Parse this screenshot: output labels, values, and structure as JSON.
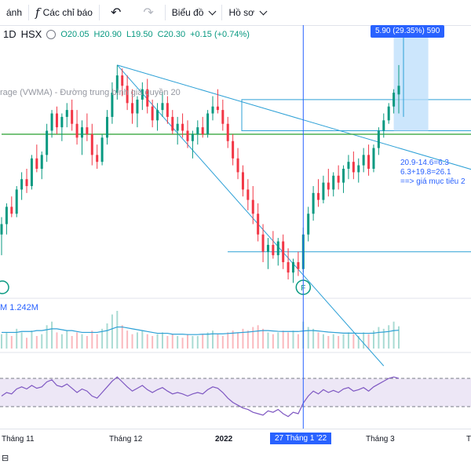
{
  "toolbar": {
    "partial_label": "ánh",
    "indicators_label": "Các chỉ báo",
    "fx_symbol": "f",
    "chart_label": "Biểu đồ",
    "profile_label": "Hồ sơ"
  },
  "legend": {
    "interval": "1D",
    "exchange": "HSX",
    "open": "O20.05",
    "high": "H20.90",
    "low": "L19.50",
    "close": "C20.30",
    "change": "+0.15 (+0.74%)"
  },
  "vwma_label": "rage (VWMA) - Đường trung bình giá quyền 20",
  "volume_label": "M  1.242M",
  "measure_label": "5.90 (29.35%) 590",
  "annotation": {
    "line1": "20.9-14.6=6.3",
    "line2": "6.3+19.8=26.1",
    "line3": "==> giá mục tiêu 2"
  },
  "event_marker": "F",
  "xaxis": {
    "labels": [
      "Tháng 11",
      "Tháng 12",
      "2022",
      "Tháng 3",
      "T"
    ],
    "cursor_date": "27 Tháng 1 '22"
  },
  "colors": {
    "up": "#089981",
    "down": "#f23645",
    "trend": "#2ca0d6",
    "support": "#4caf50",
    "rsi_band": "#ede7f6",
    "rsi_line": "#7e57c2",
    "measure_fill": "#bbdefb",
    "cursor": "#2962ff"
  },
  "chart_data": {
    "type": "candlestick",
    "candles": [
      [
        16.0,
        16.5,
        15.4,
        16.3
      ],
      [
        16.3,
        16.9,
        16.0,
        16.8
      ],
      [
        16.8,
        17.1,
        16.5,
        16.6
      ],
      [
        16.6,
        17.4,
        16.5,
        17.3
      ],
      [
        17.3,
        17.8,
        17.0,
        17.6
      ],
      [
        17.6,
        17.9,
        17.2,
        17.4
      ],
      [
        17.4,
        18.3,
        17.3,
        18.2
      ],
      [
        18.2,
        18.6,
        17.8,
        17.9
      ],
      [
        17.9,
        18.4,
        17.6,
        18.3
      ],
      [
        18.3,
        19.2,
        18.1,
        19.0
      ],
      [
        19.0,
        19.6,
        18.8,
        19.5
      ],
      [
        19.5,
        19.7,
        18.9,
        19.1
      ],
      [
        19.1,
        19.5,
        18.7,
        19.4
      ],
      [
        19.4,
        19.8,
        19.1,
        19.6
      ],
      [
        19.6,
        19.9,
        19.0,
        19.2
      ],
      [
        19.2,
        19.6,
        18.6,
        18.8
      ],
      [
        18.8,
        19.3,
        18.3,
        19.1
      ],
      [
        19.1,
        19.5,
        18.7,
        18.9
      ],
      [
        18.9,
        19.2,
        18.0,
        18.3
      ],
      [
        18.3,
        18.6,
        17.9,
        18.1
      ],
      [
        18.1,
        18.9,
        18.0,
        18.8
      ],
      [
        18.8,
        19.6,
        18.6,
        19.4
      ],
      [
        19.4,
        20.4,
        19.2,
        20.1
      ],
      [
        20.1,
        20.9,
        19.9,
        20.6
      ],
      [
        20.6,
        20.8,
        20.0,
        20.3
      ],
      [
        20.3,
        20.6,
        19.6,
        19.8
      ],
      [
        19.8,
        20.2,
        19.2,
        19.5
      ],
      [
        19.5,
        20.0,
        19.1,
        19.9
      ],
      [
        19.9,
        20.4,
        19.6,
        20.2
      ],
      [
        20.2,
        20.5,
        19.5,
        19.7
      ],
      [
        19.7,
        19.9,
        19.1,
        19.3
      ],
      [
        19.3,
        19.8,
        19.0,
        19.6
      ],
      [
        19.6,
        20.1,
        19.4,
        19.8
      ],
      [
        19.8,
        20.0,
        19.2,
        19.4
      ],
      [
        19.4,
        19.6,
        18.9,
        19.0
      ],
      [
        19.0,
        19.4,
        18.6,
        19.2
      ],
      [
        19.2,
        19.5,
        18.8,
        19.0
      ],
      [
        19.0,
        19.3,
        18.5,
        18.7
      ],
      [
        18.7,
        19.0,
        18.2,
        18.9
      ],
      [
        18.9,
        19.3,
        18.6,
        19.1
      ],
      [
        19.1,
        19.4,
        18.8,
        18.9
      ],
      [
        18.9,
        19.6,
        18.8,
        19.5
      ],
      [
        19.5,
        20.0,
        19.3,
        19.7
      ],
      [
        19.7,
        20.2,
        19.5,
        19.6
      ],
      [
        19.6,
        19.9,
        19.0,
        19.2
      ],
      [
        19.2,
        19.4,
        18.5,
        18.7
      ],
      [
        18.7,
        18.9,
        18.0,
        18.2
      ],
      [
        18.2,
        18.5,
        17.6,
        17.8
      ],
      [
        17.8,
        18.0,
        17.1,
        17.3
      ],
      [
        17.3,
        17.6,
        16.7,
        17.0
      ],
      [
        17.0,
        17.4,
        16.3,
        16.6
      ],
      [
        16.6,
        16.9,
        15.8,
        16.0
      ],
      [
        16.0,
        16.3,
        15.2,
        15.5
      ],
      [
        15.5,
        15.9,
        15.0,
        15.7
      ],
      [
        15.7,
        16.1,
        15.3,
        15.4
      ],
      [
        15.4,
        15.9,
        15.1,
        15.8
      ],
      [
        15.8,
        16.0,
        15.0,
        15.2
      ],
      [
        15.2,
        15.6,
        14.7,
        14.9
      ],
      [
        14.9,
        15.3,
        14.6,
        15.2
      ],
      [
        15.2,
        15.5,
        14.8,
        15.0
      ],
      [
        15.0,
        16.2,
        14.9,
        16.0
      ],
      [
        16.0,
        16.8,
        15.8,
        16.6
      ],
      [
        16.6,
        17.4,
        16.4,
        17.2
      ],
      [
        17.2,
        17.6,
        16.8,
        17.0
      ],
      [
        17.0,
        17.7,
        16.9,
        17.5
      ],
      [
        17.5,
        17.9,
        17.1,
        17.3
      ],
      [
        17.3,
        17.8,
        17.1,
        17.7
      ],
      [
        17.7,
        18.0,
        17.3,
        17.5
      ],
      [
        17.5,
        18.0,
        17.2,
        17.9
      ],
      [
        17.9,
        18.3,
        17.6,
        18.1
      ],
      [
        18.1,
        18.4,
        17.6,
        17.8
      ],
      [
        17.8,
        18.2,
        17.5,
        18.0
      ],
      [
        18.0,
        18.5,
        17.8,
        18.3
      ],
      [
        18.3,
        18.6,
        17.7,
        17.9
      ],
      [
        17.9,
        18.6,
        17.8,
        18.5
      ],
      [
        18.5,
        19.1,
        18.3,
        19.0
      ],
      [
        19.0,
        19.5,
        18.8,
        19.3
      ],
      [
        19.3,
        19.8,
        19.2,
        19.7
      ],
      [
        19.7,
        20.2,
        19.5,
        20.1
      ],
      [
        20.05,
        20.9,
        19.5,
        20.3
      ]
    ],
    "ylim": [
      14.2,
      21.6
    ],
    "volumes": [
      0.8,
      0.9,
      0.7,
      1.1,
      0.9,
      0.6,
      1.0,
      0.7,
      0.8,
      1.3,
      1.5,
      0.9,
      0.8,
      1.0,
      0.7,
      0.9,
      0.8,
      0.7,
      1.0,
      0.8,
      1.1,
      1.4,
      1.9,
      2.1,
      1.3,
      1.0,
      0.8,
      0.9,
      1.0,
      0.8,
      0.7,
      0.8,
      0.9,
      0.7,
      0.8,
      0.7,
      0.6,
      0.8,
      0.7,
      0.7,
      0.8,
      0.9,
      1.0,
      0.8,
      0.7,
      0.9,
      1.0,
      0.9,
      1.1,
      1.0,
      1.2,
      1.3,
      1.1,
      0.9,
      0.8,
      0.9,
      1.0,
      0.9,
      1.0,
      0.8,
      1.5,
      1.2,
      1.1,
      0.9,
      0.8,
      0.7,
      0.8,
      0.7,
      0.8,
      0.9,
      0.8,
      0.7,
      0.9,
      0.8,
      1.0,
      1.2,
      1.1,
      1.3,
      1.5,
      1.24
    ],
    "vol_ma": [
      0.9,
      0.9,
      0.9,
      0.9,
      0.95,
      0.95,
      0.95,
      1.0,
      1.0,
      1.05,
      1.1,
      1.1,
      1.05,
      1.0,
      1.0,
      0.95,
      0.9,
      0.9,
      0.9,
      0.9,
      0.95,
      1.0,
      1.1,
      1.2,
      1.2,
      1.15,
      1.1,
      1.05,
      1.0,
      0.95,
      0.9,
      0.85,
      0.85,
      0.85,
      0.8,
      0.8,
      0.8,
      0.78,
      0.78,
      0.78,
      0.8,
      0.8,
      0.82,
      0.82,
      0.82,
      0.84,
      0.86,
      0.88,
      0.9,
      0.92,
      0.95,
      0.98,
      1.0,
      1.0,
      0.98,
      0.96,
      0.95,
      0.95,
      0.95,
      0.95,
      0.98,
      1.0,
      1.0,
      0.98,
      0.95,
      0.92,
      0.9,
      0.88,
      0.86,
      0.86,
      0.86,
      0.85,
      0.85,
      0.85,
      0.86,
      0.9,
      0.92,
      0.95,
      1.0,
      1.02
    ],
    "rsi": [
      45,
      50,
      48,
      55,
      58,
      55,
      60,
      56,
      58,
      65,
      68,
      60,
      58,
      62,
      56,
      50,
      55,
      52,
      45,
      42,
      50,
      58,
      66,
      72,
      65,
      58,
      52,
      56,
      60,
      54,
      50,
      54,
      57,
      52,
      48,
      50,
      48,
      45,
      48,
      50,
      48,
      54,
      58,
      56,
      50,
      42,
      36,
      32,
      28,
      26,
      22,
      20,
      18,
      24,
      22,
      26,
      20,
      16,
      22,
      20,
      35,
      45,
      52,
      48,
      54,
      50,
      53,
      50,
      55,
      57,
      52,
      54,
      57,
      52,
      58,
      62,
      66,
      70,
      72,
      70
    ],
    "rsi_band": [
      30,
      70
    ],
    "trendlines": [
      {
        "name": "downtrend-upper",
        "from": [
          23,
          20.9
        ],
        "to": [
          100,
          17.6
        ]
      },
      {
        "name": "downtrend-steep",
        "from": [
          23,
          20.9
        ],
        "to": [
          76,
          12.2
        ]
      },
      {
        "name": "support-horizontal",
        "from": [
          0,
          18.9
        ],
        "to": [
          100,
          18.9
        ]
      }
    ],
    "boxes": [
      {
        "name": "target-box-top",
        "y1": 19.9,
        "y2": 19.0
      },
      {
        "name": "breakout-level",
        "y": 15.5
      }
    ],
    "cursor_index": 60
  }
}
